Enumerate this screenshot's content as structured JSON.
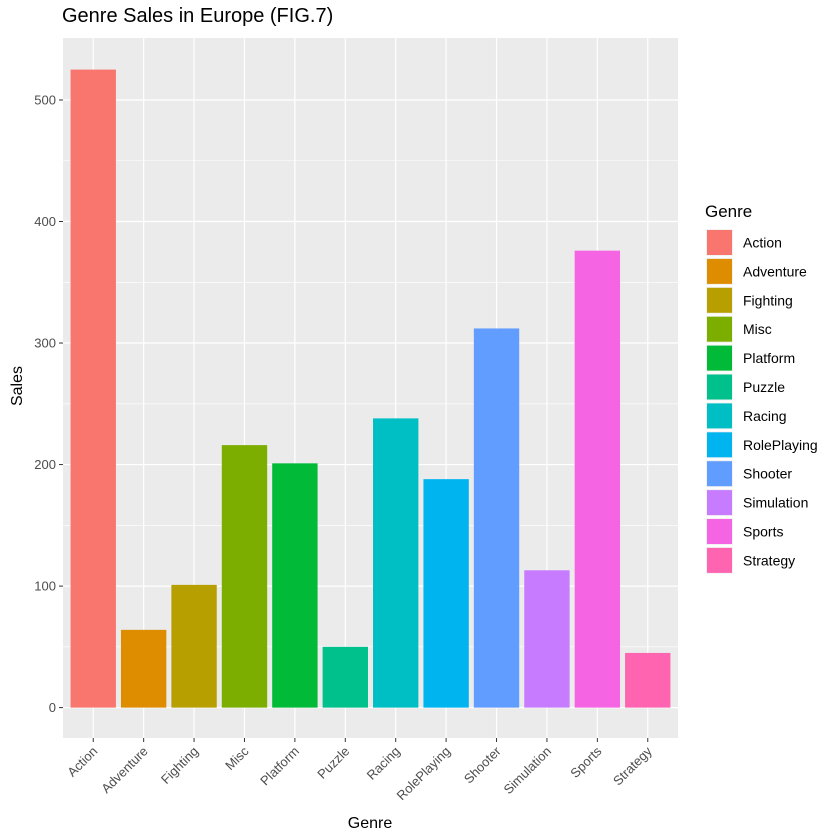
{
  "chart_data": {
    "type": "bar",
    "title": "Genre Sales in Europe (FIG.7)",
    "xlabel": "Genre",
    "ylabel": "Sales",
    "categories": [
      "Action",
      "Adventure",
      "Fighting",
      "Misc",
      "Platform",
      "Puzzle",
      "Racing",
      "RolePlaying",
      "Shooter",
      "Simulation",
      "Sports",
      "Strategy"
    ],
    "values": [
      525,
      64,
      101,
      216,
      201,
      50,
      238,
      188,
      312,
      113,
      376,
      45
    ],
    "colors": [
      "#F8766D",
      "#DE8C00",
      "#B79F00",
      "#7CAE00",
      "#00BA38",
      "#00C08B",
      "#00BFC4",
      "#00B4F0",
      "#619CFF",
      "#C77CFF",
      "#F564E3",
      "#FF64B0"
    ],
    "yticks": [
      0,
      100,
      200,
      300,
      400,
      500
    ],
    "ylim": [
      -25,
      551
    ],
    "grid": true,
    "panel_background": "#EBEBEB",
    "legend": {
      "title": "Genre",
      "position": "right",
      "entries": [
        "Action",
        "Adventure",
        "Fighting",
        "Misc",
        "Platform",
        "Puzzle",
        "Racing",
        "RolePlaying",
        "Shooter",
        "Simulation",
        "Sports",
        "Strategy"
      ]
    }
  }
}
